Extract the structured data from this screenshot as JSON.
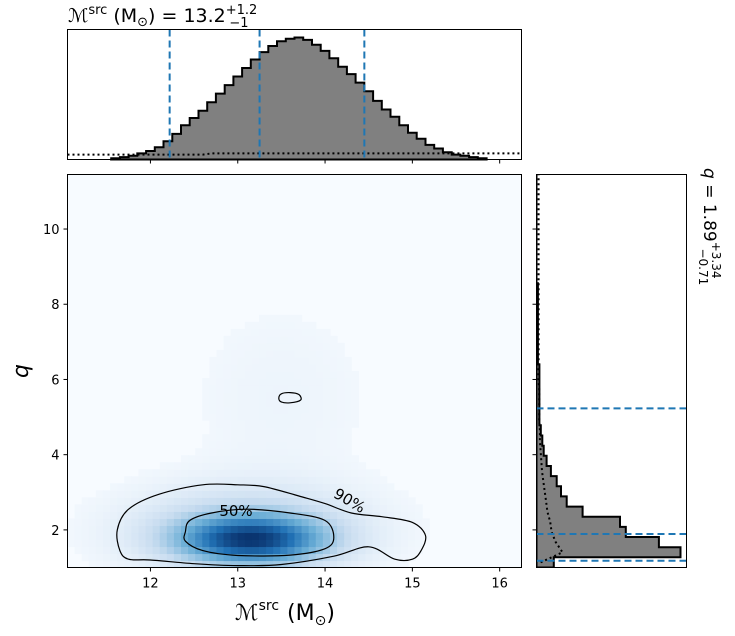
{
  "chart_data": {
    "type": "corner-plot",
    "joint": {
      "type": "heatmap",
      "x_label": "ℳ",
      "x_label_sup": "src",
      "x_label_unit": "(M",
      "x_label_unit_sub": "⊙",
      "x_label_close": ")",
      "y_label": "q",
      "xlim": [
        11.05,
        16.25
      ],
      "ylim": [
        1.0,
        11.45
      ],
      "x_ticks": [
        12,
        13,
        14,
        15,
        16
      ],
      "y_ticks": [
        2,
        4,
        6,
        8,
        10
      ],
      "density_peak": {
        "x": 13.15,
        "y": 1.75
      },
      "colormap": [
        "#f7fbff",
        "#c6dbef",
        "#6baed6",
        "#2171b5",
        "#08306b"
      ],
      "contours": [
        {
          "label": "50%",
          "points": [
            [
              12.4,
              1.95
            ],
            [
              12.45,
              2.25
            ],
            [
              12.7,
              2.45
            ],
            [
              13.1,
              2.55
            ],
            [
              13.6,
              2.45
            ],
            [
              14.0,
              2.25
            ],
            [
              14.1,
              1.8
            ],
            [
              14.0,
              1.5
            ],
            [
              13.6,
              1.33
            ],
            [
              13.0,
              1.32
            ],
            [
              12.6,
              1.45
            ],
            [
              12.4,
              1.7
            ]
          ]
        },
        {
          "label": "90%",
          "points": [
            [
              11.65,
              1.45
            ],
            [
              11.62,
              2.0
            ],
            [
              11.75,
              2.55
            ],
            [
              12.1,
              2.95
            ],
            [
              12.6,
              3.2
            ],
            [
              13.0,
              3.2
            ],
            [
              13.3,
              3.15
            ],
            [
              13.7,
              2.9
            ],
            [
              14.0,
              2.7
            ],
            [
              14.3,
              2.45
            ],
            [
              14.65,
              2.35
            ],
            [
              15.0,
              2.2
            ],
            [
              15.15,
              1.85
            ],
            [
              15.1,
              1.45
            ],
            [
              15.0,
              1.22
            ],
            [
              14.8,
              1.22
            ],
            [
              14.5,
              1.55
            ],
            [
              14.1,
              1.3
            ],
            [
              13.5,
              1.08
            ],
            [
              13.0,
              1.05
            ],
            [
              12.5,
              1.1
            ],
            [
              12.0,
              1.2
            ],
            [
              11.75,
              1.22
            ]
          ]
        },
        {
          "label": "",
          "points": [
            [
              13.47,
              5.5
            ],
            [
              13.5,
              5.62
            ],
            [
              13.6,
              5.65
            ],
            [
              13.7,
              5.6
            ],
            [
              13.72,
              5.45
            ],
            [
              13.6,
              5.38
            ],
            [
              13.5,
              5.4
            ]
          ]
        }
      ]
    },
    "marginal_x": {
      "type": "histogram",
      "title_prefix": "ℳ",
      "title_sup": "src",
      "title_unit": "(M",
      "title_unit_sub": "⊙",
      "title_eq": ") = 13.2",
      "title_plus": "+1.2",
      "title_minus": "−1",
      "median": 13.25,
      "lower": 12.22,
      "upper": 14.45,
      "bins_start": 11.55,
      "bin_width": 0.1,
      "values": [
        1,
        2,
        3,
        5,
        7,
        10,
        15,
        21,
        28,
        34,
        40,
        47,
        54,
        61,
        68,
        75,
        82,
        88,
        93,
        97,
        99,
        100,
        98,
        94,
        89,
        83,
        76,
        70,
        63,
        56,
        48,
        41,
        35,
        28,
        22,
        17,
        12,
        9,
        6,
        4,
        3,
        2,
        1
      ],
      "prior": [
        4,
        4,
        4,
        4,
        4,
        4,
        4,
        4,
        4,
        4,
        4,
        5,
        5,
        5,
        5,
        5,
        5,
        5,
        5,
        5,
        5,
        5,
        5,
        5,
        5,
        5,
        5,
        5,
        5,
        5,
        5,
        5,
        5,
        5,
        5,
        5,
        5,
        5,
        5,
        5,
        5,
        5,
        5
      ]
    },
    "marginal_y": {
      "type": "histogram",
      "title_var": "q",
      "title_eq": " = 1.89",
      "title_plus": "+3.34",
      "title_minus": "−0.71",
      "median": 1.89,
      "lower": 1.18,
      "upper": 5.23,
      "bins_start": 1.0,
      "bin_width": 0.27,
      "values": [
        12,
        100,
        85,
        62,
        58,
        32,
        21,
        17,
        14,
        10,
        7,
        5,
        4,
        3,
        2,
        2,
        2,
        2,
        2,
        2,
        1,
        1,
        1,
        1,
        1,
        1,
        1,
        1,
        0,
        0,
        0,
        0,
        0,
        0,
        0,
        0,
        0,
        0,
        0
      ],
      "prior": [
        6,
        38,
        28,
        22,
        20,
        16,
        14,
        12,
        10,
        8,
        7,
        6,
        5,
        5,
        4,
        4,
        4,
        4,
        3,
        3,
        3,
        3,
        3,
        3,
        3,
        3,
        3,
        3,
        3,
        3,
        3,
        3,
        3,
        3,
        3,
        3,
        3,
        3,
        3
      ]
    },
    "colors": {
      "line": "#1f77b4",
      "hist_fill": "#808080",
      "edge": "#000000"
    }
  }
}
